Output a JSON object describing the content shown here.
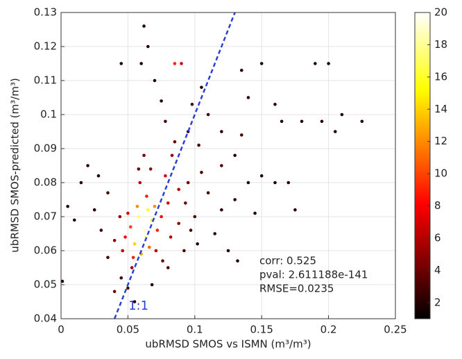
{
  "chart_data": {
    "type": "scatter",
    "xlabel": "ubRMSD SMOS vs ISMN (m³/m³)",
    "ylabel": "ubRMSD SMOS-predicted (m³/m³)",
    "xlim": [
      0,
      0.25
    ],
    "ylim": [
      0.04,
      0.13
    ],
    "xticks": [
      0,
      0.05,
      0.1,
      0.15,
      0.2,
      0.25
    ],
    "yticks": [
      0.04,
      0.05,
      0.06,
      0.07,
      0.08,
      0.09,
      0.1,
      0.11,
      0.12,
      0.13
    ],
    "grid": true,
    "colormap": "hot",
    "clim": [
      1,
      20
    ],
    "cticks": [
      2,
      4,
      6,
      8,
      10,
      12,
      14,
      16,
      18,
      20
    ],
    "x": [
      0.06,
      0.062,
      0.058,
      0.065,
      0.063,
      0.055,
      0.068,
      0.06,
      0.07,
      0.057,
      0.052,
      0.066,
      0.072,
      0.048,
      0.075,
      0.064,
      0.054,
      0.078,
      0.085,
      0.09,
      0.08,
      0.046,
      0.05,
      0.082,
      0.059,
      0.071,
      0.04,
      0.044,
      0.088,
      0.093,
      0.067,
      0.053,
      0.076,
      0.062,
      0.095,
      0.1,
      0.105,
      0.11,
      0.035,
      0.03,
      0.025,
      0.02,
      0.015,
      0.01,
      0.005,
      0.001,
      0.045,
      0.05,
      0.04,
      0.055,
      0.068,
      0.08,
      0.092,
      0.102,
      0.115,
      0.12,
      0.13,
      0.14,
      0.15,
      0.145,
      0.16,
      0.17,
      0.175,
      0.13,
      0.12,
      0.11,
      0.098,
      0.105,
      0.095,
      0.085,
      0.078,
      0.07,
      0.06,
      0.062,
      0.045,
      0.14,
      0.16,
      0.165,
      0.18,
      0.195,
      0.205,
      0.21,
      0.225,
      0.19,
      0.2,
      0.15,
      0.135,
      0.135,
      0.12,
      0.125,
      0.132,
      0.065,
      0.075,
      0.103,
      0.083,
      0.088,
      0.097,
      0.058,
      0.035,
      0.028
    ],
    "values": [
      0.068,
      0.066,
      0.07,
      0.072,
      0.064,
      0.062,
      0.069,
      0.059,
      0.073,
      0.073,
      0.067,
      0.061,
      0.066,
      0.064,
      0.07,
      0.076,
      0.058,
      0.082,
      0.115,
      0.115,
      0.074,
      0.06,
      0.071,
      0.064,
      0.08,
      0.06,
      0.063,
      0.07,
      0.068,
      0.074,
      0.084,
      0.055,
      0.057,
      0.088,
      0.08,
      0.07,
      0.083,
      0.077,
      0.058,
      0.066,
      0.072,
      0.085,
      0.08,
      0.069,
      0.073,
      0.051,
      0.052,
      0.049,
      0.048,
      0.045,
      0.05,
      0.055,
      0.06,
      0.062,
      0.065,
      0.072,
      0.075,
      0.08,
      0.082,
      0.071,
      0.08,
      0.08,
      0.072,
      0.088,
      0.095,
      0.1,
      0.103,
      0.108,
      0.095,
      0.092,
      0.098,
      0.11,
      0.115,
      0.126,
      0.115,
      0.105,
      0.103,
      0.098,
      0.098,
      0.098,
      0.095,
      0.1,
      0.098,
      0.115,
      0.115,
      0.115,
      0.113,
      0.094,
      0.085,
      0.06,
      0.057,
      0.12,
      0.104,
      0.091,
      0.088,
      0.078,
      0.066,
      0.084,
      0.077,
      0.082
    ],
    "c": [
      20,
      19,
      17,
      16,
      18,
      14,
      15,
      13,
      12,
      12,
      10,
      11,
      9,
      8,
      8,
      9,
      9,
      7,
      9,
      7,
      7,
      6,
      7,
      6,
      6,
      6,
      5,
      5,
      5,
      4,
      5,
      5,
      4,
      4,
      4,
      3,
      3,
      3,
      3,
      3,
      2,
      2,
      2,
      2,
      2,
      2,
      3,
      3,
      4,
      2,
      2,
      3,
      3,
      2,
      2,
      2,
      2,
      2,
      2,
      2,
      2,
      2,
      2,
      2,
      2,
      3,
      3,
      2,
      3,
      4,
      3,
      2,
      2,
      2,
      2,
      2,
      2,
      2,
      2,
      2,
      2,
      2,
      2,
      2,
      2,
      2,
      2,
      3,
      3,
      2,
      2,
      2,
      2,
      3,
      5,
      6,
      3,
      4,
      3,
      2
    ],
    "reference_line": {
      "label": "1:1",
      "color": "#2a3fd6",
      "x": [
        0.04,
        0.13
      ],
      "y": [
        0.04,
        0.13
      ]
    },
    "annotations": [
      "corr: 0.525",
      "pval: 2.611188e-141",
      "RMSE=0.0235"
    ]
  }
}
